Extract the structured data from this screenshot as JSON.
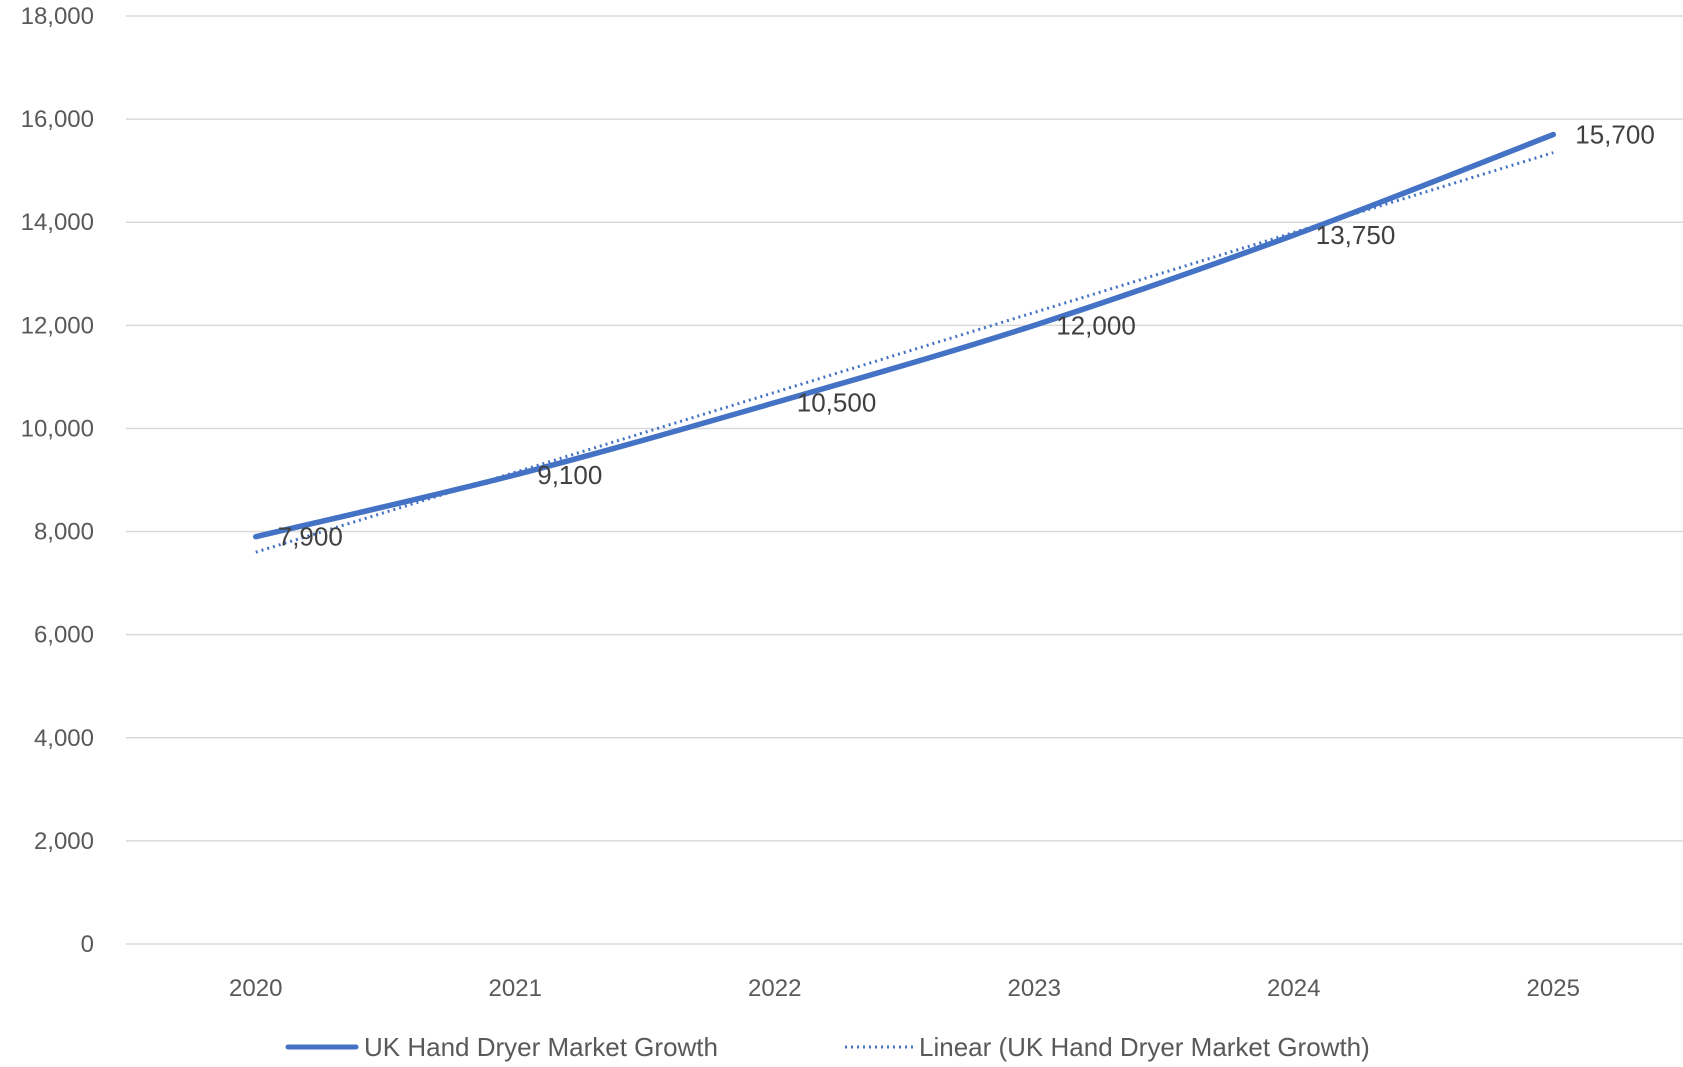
{
  "chart_data": {
    "type": "line",
    "title": "",
    "xlabel": "",
    "ylabel": "",
    "categories": [
      "2020",
      "2021",
      "2022",
      "2023",
      "2024",
      "2025"
    ],
    "series": [
      {
        "name": "UK Hand Dryer Market Growth",
        "values": [
          7900,
          9100,
          10500,
          12000,
          13750,
          15700
        ],
        "data_labels": [
          "7,900",
          "9,100",
          "10,500",
          "12,000",
          "13,750",
          "15,700"
        ],
        "color": "#4472C4",
        "style": "solid"
      },
      {
        "name": "Linear (UK Hand Dryer Market Growth)",
        "trendline_of": 0,
        "trend_start": 7600,
        "trend_end": 15350,
        "color": "#4472C4",
        "style": "dotted"
      }
    ],
    "ylim": [
      0,
      18000
    ],
    "yticks": [
      0,
      2000,
      4000,
      6000,
      8000,
      10000,
      12000,
      14000,
      16000,
      18000
    ],
    "ytick_labels": [
      "0",
      "2,000",
      "4,000",
      "6,000",
      "8,000",
      "10,000",
      "12,000",
      "14,000",
      "16,000",
      "18,000"
    ],
    "grid": true,
    "legend": "bottom"
  }
}
